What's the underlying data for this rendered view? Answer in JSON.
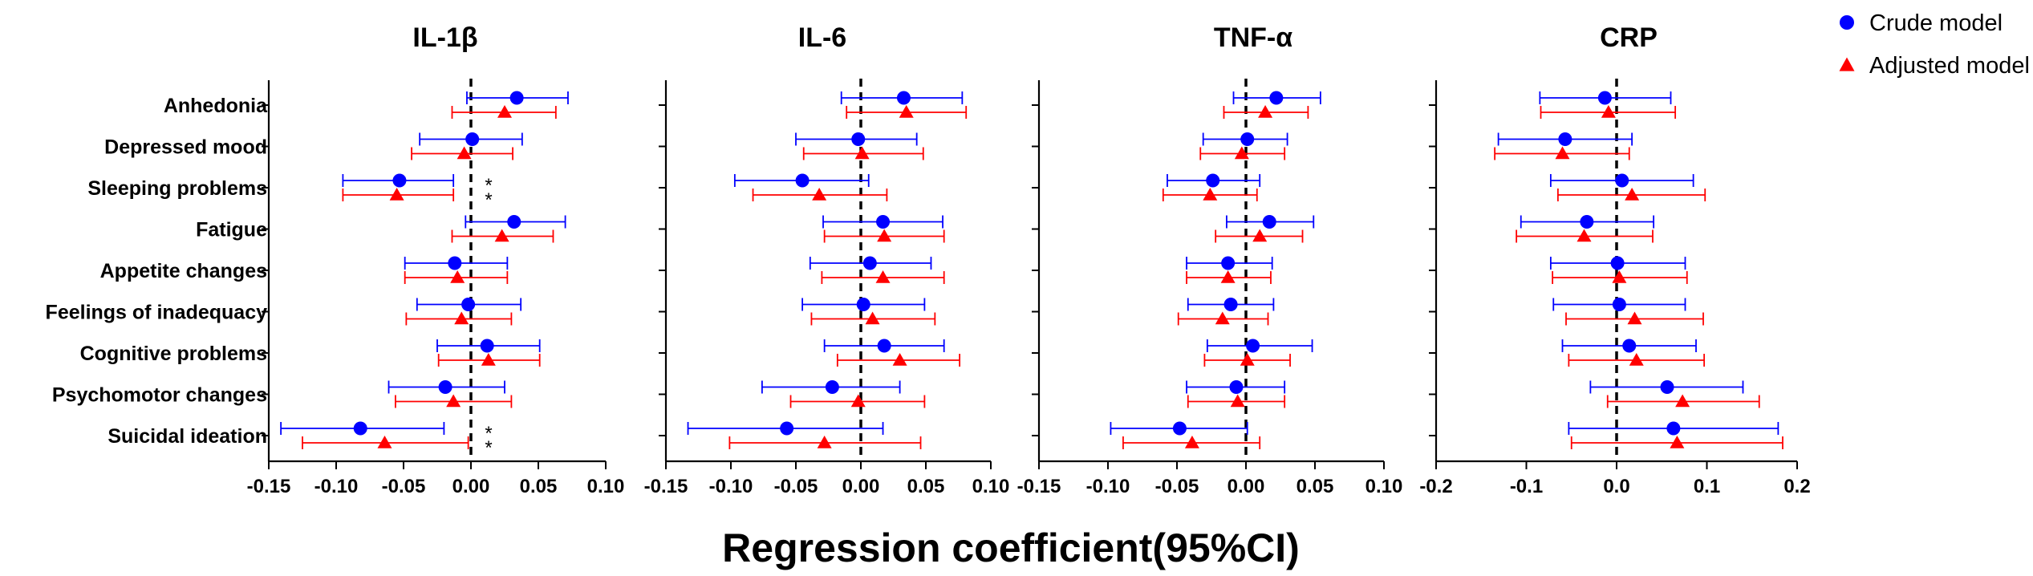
{
  "chart_data": {
    "type": "forest",
    "xlabel": "Regression coefficient(95%CI)",
    "categories": [
      "Anhedonia",
      "Depressed mood",
      "Sleeping problems",
      "Fatigue",
      "Appetite changes",
      "Feelings of inadequacy",
      "Cognitive problems",
      "Psychomotor changes",
      "Suicidal ideation"
    ],
    "legend": [
      {
        "name": "Crude model",
        "color": "#0000ff",
        "marker": "circle"
      },
      {
        "name": "Adjusted model",
        "color": "#ff0000",
        "marker": "triangle"
      }
    ],
    "reference_line": 0,
    "panels": [
      {
        "title": "IL-1β",
        "xlim": [
          -0.15,
          0.1
        ],
        "xticks": [
          -0.15,
          -0.1,
          -0.05,
          0.0,
          0.05,
          0.1
        ],
        "tick_labels": [
          "-0.15",
          "-0.10",
          "-0.05",
          "0.00",
          "0.05",
          "0.10"
        ],
        "crude": [
          {
            "est": 0.034,
            "lo": -0.003,
            "hi": 0.072
          },
          {
            "est": 0.001,
            "lo": -0.038,
            "hi": 0.038
          },
          {
            "est": -0.053,
            "lo": -0.095,
            "hi": -0.013
          },
          {
            "est": 0.032,
            "lo": -0.004,
            "hi": 0.07
          },
          {
            "est": -0.012,
            "lo": -0.049,
            "hi": 0.027
          },
          {
            "est": -0.002,
            "lo": -0.04,
            "hi": 0.037
          },
          {
            "est": 0.012,
            "lo": -0.025,
            "hi": 0.051
          },
          {
            "est": -0.019,
            "lo": -0.061,
            "hi": 0.025
          },
          {
            "est": -0.082,
            "lo": -0.141,
            "hi": -0.02
          }
        ],
        "adjusted": [
          {
            "est": 0.025,
            "lo": -0.014,
            "hi": 0.063
          },
          {
            "est": -0.005,
            "lo": -0.044,
            "hi": 0.031
          },
          {
            "est": -0.055,
            "lo": -0.095,
            "hi": -0.013
          },
          {
            "est": 0.023,
            "lo": -0.014,
            "hi": 0.061
          },
          {
            "est": -0.01,
            "lo": -0.049,
            "hi": 0.027
          },
          {
            "est": -0.007,
            "lo": -0.048,
            "hi": 0.03
          },
          {
            "est": 0.013,
            "lo": -0.024,
            "hi": 0.051
          },
          {
            "est": -0.013,
            "lo": -0.056,
            "hi": 0.03
          },
          {
            "est": -0.064,
            "lo": -0.125,
            "hi": -0.002
          }
        ],
        "stars": [
          {
            "row": 2,
            "model": "crude",
            "text": "*"
          },
          {
            "row": 2,
            "model": "adjusted",
            "text": "*"
          },
          {
            "row": 8,
            "model": "crude",
            "text": "*"
          },
          {
            "row": 8,
            "model": "adjusted",
            "text": "*"
          }
        ]
      },
      {
        "title": "IL-6",
        "xlim": [
          -0.15,
          0.1
        ],
        "xticks": [
          -0.15,
          -0.1,
          -0.05,
          0.0,
          0.05,
          0.1
        ],
        "tick_labels": [
          "-0.15",
          "-0.10",
          "-0.05",
          "0.00",
          "0.05",
          "0.10"
        ],
        "crude": [
          {
            "est": 0.033,
            "lo": -0.015,
            "hi": 0.078
          },
          {
            "est": -0.002,
            "lo": -0.05,
            "hi": 0.043
          },
          {
            "est": -0.045,
            "lo": -0.097,
            "hi": 0.006
          },
          {
            "est": 0.017,
            "lo": -0.029,
            "hi": 0.063
          },
          {
            "est": 0.007,
            "lo": -0.039,
            "hi": 0.054
          },
          {
            "est": 0.002,
            "lo": -0.045,
            "hi": 0.049
          },
          {
            "est": 0.018,
            "lo": -0.028,
            "hi": 0.064
          },
          {
            "est": -0.022,
            "lo": -0.076,
            "hi": 0.03
          },
          {
            "est": -0.057,
            "lo": -0.133,
            "hi": 0.017
          }
        ],
        "adjusted": [
          {
            "est": 0.035,
            "lo": -0.011,
            "hi": 0.081
          },
          {
            "est": 0.001,
            "lo": -0.044,
            "hi": 0.048
          },
          {
            "est": -0.032,
            "lo": -0.083,
            "hi": 0.02
          },
          {
            "est": 0.018,
            "lo": -0.028,
            "hi": 0.064
          },
          {
            "est": 0.017,
            "lo": -0.03,
            "hi": 0.064
          },
          {
            "est": 0.009,
            "lo": -0.038,
            "hi": 0.057
          },
          {
            "est": 0.03,
            "lo": -0.018,
            "hi": 0.076
          },
          {
            "est": -0.002,
            "lo": -0.054,
            "hi": 0.049
          },
          {
            "est": -0.028,
            "lo": -0.101,
            "hi": 0.046
          }
        ],
        "stars": []
      },
      {
        "title": "TNF-α",
        "xlim": [
          -0.15,
          0.1
        ],
        "xticks": [
          -0.15,
          -0.1,
          -0.05,
          0.0,
          0.05,
          0.1
        ],
        "tick_labels": [
          "-0.15",
          "-0.10",
          "-0.05",
          "0.00",
          "0.05",
          "0.10"
        ],
        "crude": [
          {
            "est": 0.022,
            "lo": -0.009,
            "hi": 0.054
          },
          {
            "est": 0.001,
            "lo": -0.031,
            "hi": 0.03
          },
          {
            "est": -0.024,
            "lo": -0.057,
            "hi": 0.01
          },
          {
            "est": 0.017,
            "lo": -0.014,
            "hi": 0.049
          },
          {
            "est": -0.013,
            "lo": -0.043,
            "hi": 0.019
          },
          {
            "est": -0.011,
            "lo": -0.042,
            "hi": 0.02
          },
          {
            "est": 0.005,
            "lo": -0.028,
            "hi": 0.048
          },
          {
            "est": -0.007,
            "lo": -0.043,
            "hi": 0.028
          },
          {
            "est": -0.048,
            "lo": -0.098,
            "hi": 0.001
          }
        ],
        "adjusted": [
          {
            "est": 0.014,
            "lo": -0.016,
            "hi": 0.045
          },
          {
            "est": -0.003,
            "lo": -0.033,
            "hi": 0.028
          },
          {
            "est": -0.026,
            "lo": -0.06,
            "hi": 0.008
          },
          {
            "est": 0.01,
            "lo": -0.022,
            "hi": 0.041
          },
          {
            "est": -0.013,
            "lo": -0.043,
            "hi": 0.018
          },
          {
            "est": -0.017,
            "lo": -0.049,
            "hi": 0.016
          },
          {
            "est": 0.001,
            "lo": -0.03,
            "hi": 0.032
          },
          {
            "est": -0.006,
            "lo": -0.042,
            "hi": 0.028
          },
          {
            "est": -0.039,
            "lo": -0.089,
            "hi": 0.01
          }
        ],
        "stars": []
      },
      {
        "title": "CRP",
        "xlim": [
          -0.2,
          0.2
        ],
        "xticks": [
          -0.2,
          -0.1,
          0.0,
          0.1,
          0.2
        ],
        "tick_labels": [
          "-0.2",
          "-0.1",
          "0.0",
          "0.1",
          "0.2"
        ],
        "crude": [
          {
            "est": -0.013,
            "lo": -0.085,
            "hi": 0.06
          },
          {
            "est": -0.057,
            "lo": -0.131,
            "hi": 0.017
          },
          {
            "est": 0.006,
            "lo": -0.073,
            "hi": 0.085
          },
          {
            "est": -0.033,
            "lo": -0.106,
            "hi": 0.041
          },
          {
            "est": 0.001,
            "lo": -0.073,
            "hi": 0.076
          },
          {
            "est": 0.003,
            "lo": -0.07,
            "hi": 0.076
          },
          {
            "est": 0.014,
            "lo": -0.06,
            "hi": 0.088
          },
          {
            "est": 0.056,
            "lo": -0.029,
            "hi": 0.14
          },
          {
            "est": 0.063,
            "lo": -0.053,
            "hi": 0.179
          }
        ],
        "adjusted": [
          {
            "est": -0.009,
            "lo": -0.084,
            "hi": 0.065
          },
          {
            "est": -0.06,
            "lo": -0.135,
            "hi": 0.014
          },
          {
            "est": 0.017,
            "lo": -0.065,
            "hi": 0.098
          },
          {
            "est": -0.036,
            "lo": -0.111,
            "hi": 0.04
          },
          {
            "est": 0.003,
            "lo": -0.071,
            "hi": 0.078
          },
          {
            "est": 0.02,
            "lo": -0.056,
            "hi": 0.096
          },
          {
            "est": 0.022,
            "lo": -0.053,
            "hi": 0.097
          },
          {
            "est": 0.073,
            "lo": -0.01,
            "hi": 0.158
          },
          {
            "est": 0.067,
            "lo": -0.05,
            "hi": 0.184
          }
        ],
        "stars": []
      }
    ]
  }
}
